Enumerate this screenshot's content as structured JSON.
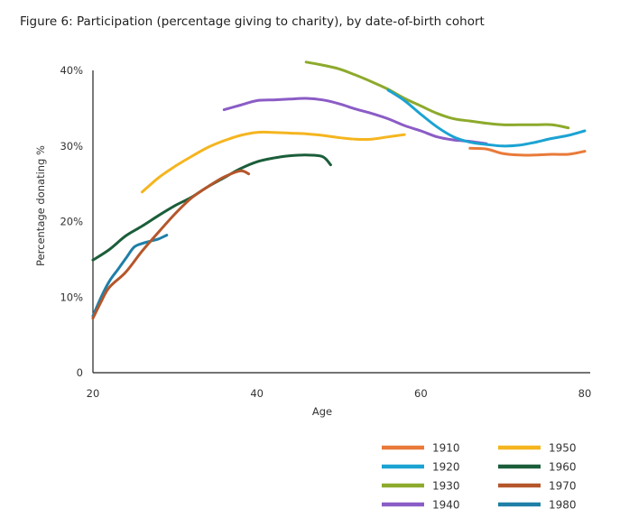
{
  "title": "Figure 6: Participation (percentage giving to charity), by date-of-birth cohort",
  "chart_data": {
    "type": "line",
    "title": "Figure 6: Participation (percentage giving to charity), by date-of-birth cohort",
    "xlabel": "Age",
    "ylabel": "Percentage donating %",
    "xlim": [
      20,
      80
    ],
    "ylim": [
      0,
      40
    ],
    "x_ticks": [
      "20",
      "40",
      "60",
      "80"
    ],
    "y_ticks": [
      "0",
      "10%",
      "20%",
      "30%",
      "40%"
    ],
    "y_tick_values": [
      0,
      10,
      20,
      30,
      40
    ],
    "x_tick_values": [
      20,
      40,
      60,
      80
    ],
    "grid": false,
    "legend_position": "bottom-right",
    "series": [
      {
        "name": "1910",
        "color": "#E97A3A",
        "points": [
          [
            66,
            29.7
          ],
          [
            68,
            29.6
          ],
          [
            70,
            29.0
          ],
          [
            72,
            28.8
          ],
          [
            74,
            28.8
          ],
          [
            76,
            28.9
          ],
          [
            78,
            28.9
          ],
          [
            80,
            29.3
          ]
        ]
      },
      {
        "name": "1920",
        "color": "#1BA3D2",
        "points": [
          [
            56,
            37.4
          ],
          [
            58,
            36.0
          ],
          [
            60,
            34.2
          ],
          [
            62,
            32.5
          ],
          [
            64,
            31.2
          ],
          [
            66,
            30.5
          ],
          [
            68,
            30.2
          ],
          [
            70,
            30.0
          ],
          [
            72,
            30.1
          ],
          [
            74,
            30.5
          ],
          [
            76,
            31.0
          ],
          [
            78,
            31.4
          ],
          [
            80,
            32.0
          ]
        ]
      },
      {
        "name": "1930",
        "color": "#8DAA2C",
        "points": [
          [
            46,
            41.1
          ],
          [
            48,
            40.7
          ],
          [
            50,
            40.2
          ],
          [
            52,
            39.4
          ],
          [
            54,
            38.5
          ],
          [
            56,
            37.5
          ],
          [
            58,
            36.3
          ],
          [
            60,
            35.3
          ],
          [
            62,
            34.3
          ],
          [
            64,
            33.6
          ],
          [
            66,
            33.3
          ],
          [
            68,
            33.0
          ],
          [
            70,
            32.8
          ],
          [
            72,
            32.8
          ],
          [
            74,
            32.8
          ],
          [
            76,
            32.8
          ],
          [
            78,
            32.4
          ]
        ]
      },
      {
        "name": "1940",
        "color": "#8B5CC6",
        "points": [
          [
            36,
            34.8
          ],
          [
            38,
            35.4
          ],
          [
            40,
            36.0
          ],
          [
            42,
            36.1
          ],
          [
            44,
            36.2
          ],
          [
            46,
            36.3
          ],
          [
            48,
            36.1
          ],
          [
            50,
            35.6
          ],
          [
            52,
            34.9
          ],
          [
            54,
            34.3
          ],
          [
            56,
            33.6
          ],
          [
            58,
            32.7
          ],
          [
            60,
            32.0
          ],
          [
            62,
            31.2
          ],
          [
            64,
            30.8
          ],
          [
            66,
            30.6
          ],
          [
            68,
            30.3
          ]
        ]
      },
      {
        "name": "1950",
        "color": "#F5B51F",
        "points": [
          [
            26,
            23.9
          ],
          [
            28,
            25.8
          ],
          [
            30,
            27.3
          ],
          [
            32,
            28.6
          ],
          [
            34,
            29.8
          ],
          [
            36,
            30.7
          ],
          [
            38,
            31.4
          ],
          [
            40,
            31.8
          ],
          [
            42,
            31.8
          ],
          [
            44,
            31.7
          ],
          [
            46,
            31.6
          ],
          [
            48,
            31.4
          ],
          [
            50,
            31.1
          ],
          [
            52,
            30.9
          ],
          [
            54,
            30.9
          ],
          [
            56,
            31.2
          ],
          [
            58,
            31.5
          ]
        ]
      },
      {
        "name": "1960",
        "color": "#1B5E3A",
        "points": [
          [
            20,
            14.9
          ],
          [
            22,
            16.3
          ],
          [
            24,
            18.1
          ],
          [
            26,
            19.4
          ],
          [
            28,
            20.8
          ],
          [
            30,
            22.1
          ],
          [
            32,
            23.2
          ],
          [
            34,
            24.6
          ],
          [
            36,
            25.8
          ],
          [
            38,
            27.0
          ],
          [
            40,
            27.9
          ],
          [
            42,
            28.4
          ],
          [
            44,
            28.7
          ],
          [
            46,
            28.8
          ],
          [
            48,
            28.6
          ],
          [
            49,
            27.5
          ]
        ]
      },
      {
        "name": "1970",
        "color": "#B5562A",
        "points": [
          [
            20,
            7.2
          ],
          [
            21,
            9.4
          ],
          [
            22,
            11.3
          ],
          [
            24,
            13.3
          ],
          [
            26,
            16.1
          ],
          [
            28,
            18.6
          ],
          [
            30,
            21.0
          ],
          [
            32,
            23.1
          ],
          [
            34,
            24.6
          ],
          [
            36,
            25.9
          ],
          [
            38,
            26.7
          ],
          [
            39,
            26.3
          ]
        ]
      },
      {
        "name": "1980",
        "color": "#1E7FA8",
        "points": [
          [
            20,
            7.5
          ],
          [
            21,
            10.0
          ],
          [
            22,
            12.1
          ],
          [
            23,
            13.6
          ],
          [
            24,
            15.1
          ],
          [
            25,
            16.6
          ],
          [
            26,
            17.1
          ],
          [
            27,
            17.4
          ],
          [
            28,
            17.7
          ],
          [
            29,
            18.2
          ]
        ]
      }
    ]
  }
}
